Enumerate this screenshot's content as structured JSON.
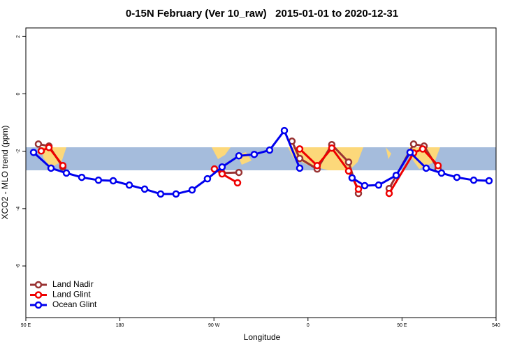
{
  "chart_data": {
    "type": "line",
    "title": "0-15N February (Ver 10_raw)   2015-01-01 to 2020-12-31",
    "xlabel": "Longitude",
    "ylabel": "XCO2 - MLO trend (ppm)",
    "xlim": [
      90,
      540
    ],
    "ylim": [
      -7.8,
      2.3
    ],
    "xticks": [
      {
        "value": 90,
        "label": "90 E"
      },
      180,
      {
        "value": 270,
        "label": "90 W"
      },
      {
        "value": 360,
        "label": "0"
      },
      {
        "value": 450,
        "label": "90 E"
      },
      540
    ],
    "yticks": [
      2,
      0,
      -2,
      -4,
      -6
    ],
    "grid": false,
    "legend": "bottom-left",
    "series": [
      {
        "name": "Land Nadir",
        "color": "#993333",
        "x": [
          102.0,
          112.1,
          125.4,
          null,
          270.5,
          277.8,
          293.9,
          null,
          344.7,
          352.1,
          368.8,
          382.8,
          398.9,
          408.3,
          null,
          437.7,
          461.1,
          471.1,
          484.5
        ],
        "values": [
          -1.75,
          -1.82,
          -2.55,
          null,
          -2.62,
          -2.76,
          -2.74,
          null,
          -1.65,
          -2.25,
          -2.62,
          -1.77,
          -2.38,
          -3.47,
          null,
          -3.3,
          -1.75,
          -1.82,
          -2.62
        ]
      },
      {
        "name": "Land Glint",
        "color": "#ee0000",
        "x": [
          104.7,
          112.1,
          125.4,
          null,
          270.5,
          277.8,
          292.6,
          null,
          352.1,
          368.8,
          382.8,
          398.9,
          408.3,
          null,
          437.7,
          461.1,
          469.8,
          484.5
        ],
        "values": [
          -1.99,
          -1.87,
          -2.5,
          null,
          -2.62,
          -2.79,
          -3.1,
          null,
          -1.92,
          -2.5,
          -1.89,
          -2.69,
          -3.32,
          null,
          -3.47,
          -2.06,
          -1.92,
          -2.5
        ]
      },
      {
        "name": "Ocean Glint",
        "color": "#0000ee",
        "x": [
          97.4,
          114.1,
          128.8,
          143.5,
          159.5,
          173.6,
          189.0,
          203.7,
          219.0,
          233.7,
          249.1,
          263.8,
          277.8,
          293.9,
          308.6,
          323.3,
          337.4,
          352.1,
          null,
          402.2,
          414.3,
          427.6,
          444.4,
          457.7,
          473.1,
          487.8,
          502.5,
          518.6,
          533.3
        ],
        "values": [
          -2.04,
          -2.59,
          -2.76,
          -2.91,
          -3.01,
          -3.03,
          -3.18,
          -3.32,
          -3.49,
          -3.49,
          -3.35,
          -2.96,
          -2.55,
          -2.16,
          -2.11,
          -1.96,
          -1.28,
          -2.59,
          null,
          -2.93,
          -3.2,
          -3.18,
          -2.84,
          -2.04,
          -2.59,
          -2.76,
          -2.91,
          -3.01,
          -3.03
        ]
      }
    ]
  }
}
